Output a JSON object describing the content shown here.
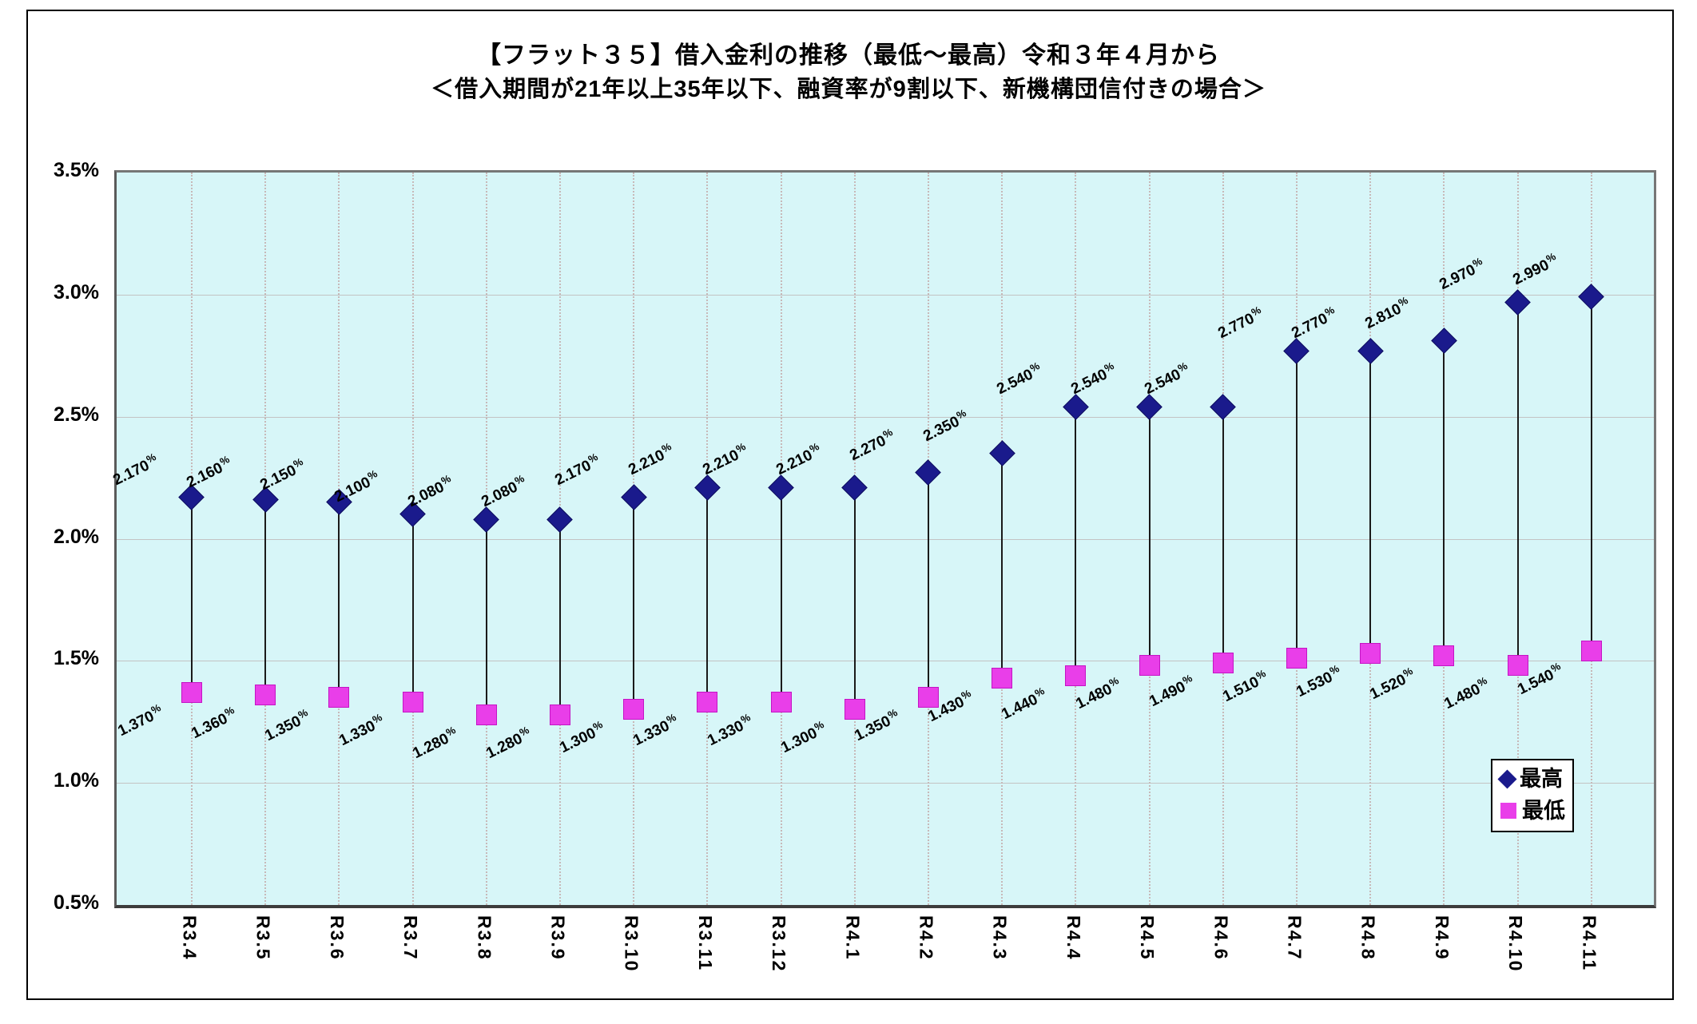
{
  "title": "【フラット３５】借入金利の推移（最低～最高）令和３年４月から",
  "subtitle": "＜借入期間が21年以上35年以下、融資率が9割以下、新機構団信付きの場合＞",
  "legend": {
    "max_label": "最高",
    "min_label": "最低"
  },
  "colors": {
    "max_marker": "#1a1a8c",
    "max_marker_border": "#0d0d5e",
    "min_marker": "#e93ee9",
    "min_marker_border": "#c414c4",
    "plot_bg": "#d7f6f8",
    "hgrid": "#c3c3c3",
    "vgrid": "#c7b9b9",
    "hilo_line": "#1a1a1a"
  },
  "y_axis": {
    "ticks": [
      "3.5%",
      "3.0%",
      "2.5%",
      "2.0%",
      "1.5%",
      "1.0%",
      "0.5%"
    ],
    "min": 0.5,
    "max": 3.5,
    "step": 0.5
  },
  "chart_data": {
    "type": "scatter",
    "subtype": "high-low-range",
    "title": "【フラット３５】借入金利の推移（最低～最高）令和３年４月から",
    "subtitle": "＜借入期間が21年以上35年以下、融資率が9割以下、新機構団信付きの場合＞",
    "categories": [
      "R3.4",
      "R3.5",
      "R3.6",
      "R3.7",
      "R3.8",
      "R3.9",
      "R3.10",
      "R3.11",
      "R3.12",
      "R4.1",
      "R4.2",
      "R4.3",
      "R4.4",
      "R4.5",
      "R4.6",
      "R4.7",
      "R4.8",
      "R4.9",
      "R4.10",
      "R4.11"
    ],
    "series": [
      {
        "name": "最高",
        "marker": "diamond",
        "values": [
          2.17,
          2.16,
          2.15,
          2.1,
          2.08,
          2.08,
          2.17,
          2.21,
          2.21,
          2.21,
          2.27,
          2.35,
          2.54,
          2.54,
          2.54,
          2.77,
          2.77,
          2.81,
          2.97,
          2.99
        ]
      },
      {
        "name": "最低",
        "marker": "square",
        "values": [
          1.37,
          1.36,
          1.35,
          1.33,
          1.28,
          1.28,
          1.3,
          1.33,
          1.33,
          1.3,
          1.35,
          1.43,
          1.44,
          1.48,
          1.49,
          1.51,
          1.53,
          1.52,
          1.48,
          1.54
        ]
      }
    ],
    "data_label_decimals": 3,
    "data_label_suffix": "%",
    "ylim": [
      0.5,
      3.5
    ],
    "grid": true,
    "legend_position": "bottom-right-inside"
  }
}
